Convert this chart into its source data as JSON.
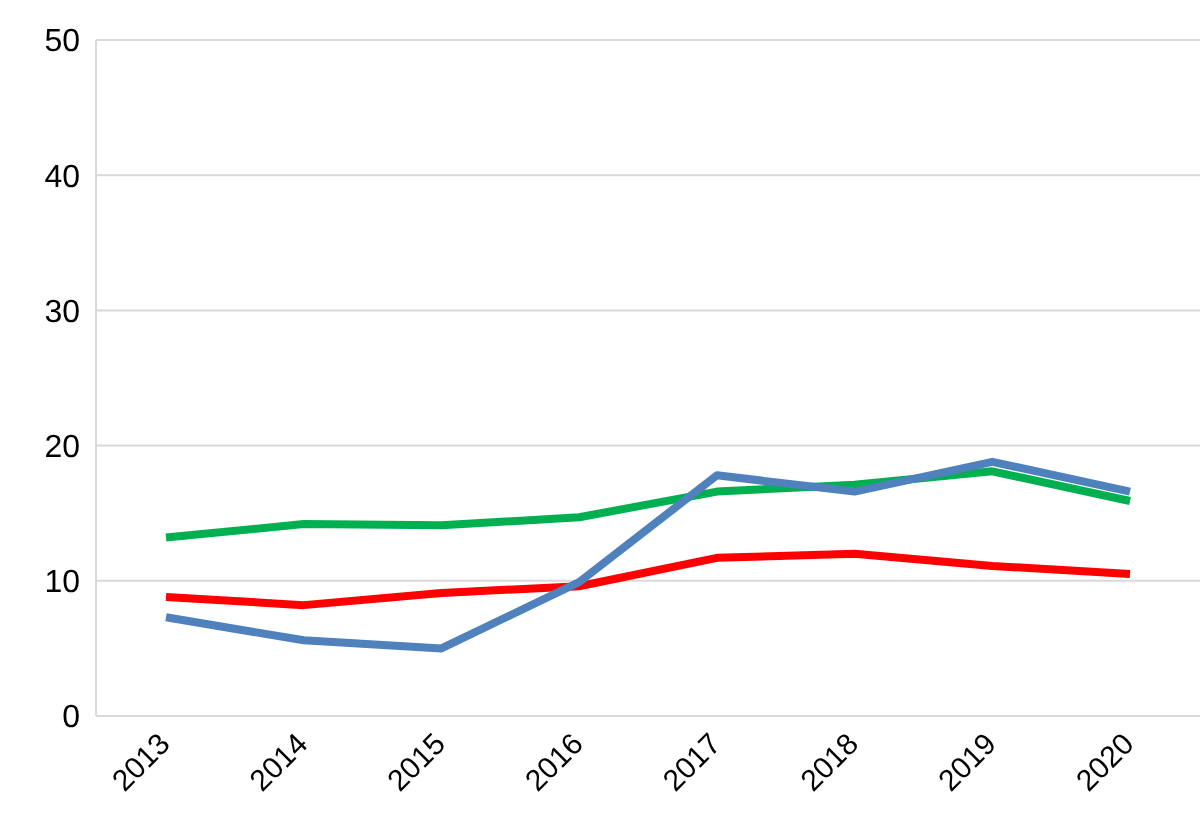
{
  "chart_data": {
    "type": "line",
    "categories": [
      "2013",
      "2014",
      "2015",
      "2016",
      "2017",
      "2018",
      "2019",
      "2020"
    ],
    "series": [
      {
        "color": "#00b050",
        "values": [
          13.2,
          14.2,
          14.1,
          14.7,
          16.6,
          17.1,
          18.1,
          15.9
        ]
      },
      {
        "color": "#ff0000",
        "values": [
          8.8,
          8.2,
          9.1,
          9.6,
          11.7,
          12.0,
          11.1,
          10.5
        ]
      },
      {
        "color": "#4f81bd",
        "values": [
          7.3,
          5.6,
          5.0,
          9.9,
          17.8,
          16.6,
          18.8,
          16.6
        ]
      }
    ],
    "ylim": [
      0,
      50
    ],
    "yticks": [
      0,
      10,
      20,
      30,
      40,
      50
    ],
    "grid": "y",
    "legend": false,
    "marker": "none",
    "line_style": "solid"
  }
}
